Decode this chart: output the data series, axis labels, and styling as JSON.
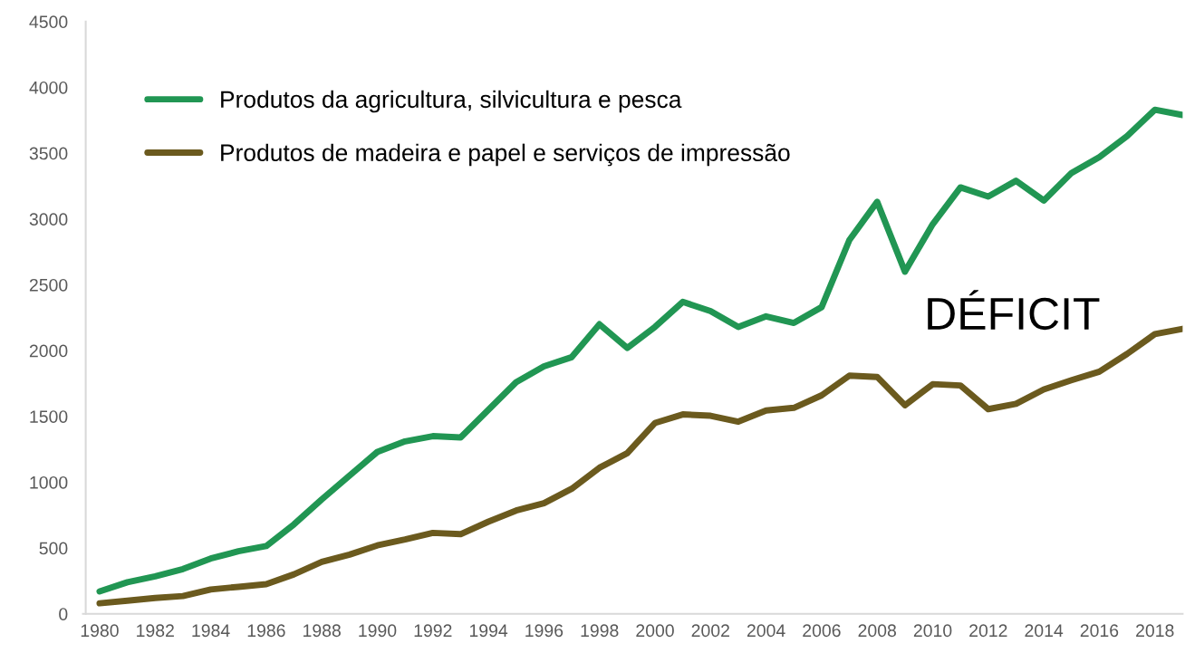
{
  "chart_data": {
    "type": "line",
    "categories": [
      "1980",
      null,
      "1982",
      null,
      "1984",
      null,
      "1986",
      null,
      "1988",
      null,
      "1990",
      null,
      "1992",
      null,
      "1994",
      null,
      "1996",
      null,
      "1998",
      null,
      "2000",
      null,
      "2002",
      null,
      "2004",
      null,
      "2006",
      null,
      "2008",
      null,
      "2010",
      null,
      "2012",
      null,
      "2014",
      null,
      "2016",
      null,
      "2018",
      null
    ],
    "series": [
      {
        "name": "Produtos da agricultura, silvicultura e pesca",
        "color": "#219653",
        "values": [
          170,
          240,
          285,
          340,
          420,
          475,
          515,
          680,
          870,
          1050,
          1230,
          1310,
          1350,
          1340,
          1550,
          1760,
          1880,
          1950,
          2200,
          2020,
          2180,
          2370,
          2300,
          2180,
          2260,
          2210,
          2330,
          2840,
          3130,
          2600,
          2960,
          3240,
          3170,
          3290,
          3140,
          3350,
          3470,
          3630,
          3830,
          3790
        ]
      },
      {
        "name": "Produtos de madeira e papel e serviços de impressão",
        "color": "#6b5a1e",
        "values": [
          80,
          100,
          120,
          135,
          185,
          205,
          225,
          300,
          395,
          450,
          520,
          565,
          615,
          605,
          700,
          785,
          840,
          950,
          1110,
          1220,
          1450,
          1515,
          1505,
          1460,
          1545,
          1565,
          1660,
          1810,
          1800,
          1585,
          1745,
          1735,
          1555,
          1595,
          1705,
          1775,
          1840,
          1975,
          2125,
          2165
        ]
      }
    ],
    "ylim": [
      0,
      4500
    ],
    "yticks": [
      0,
      500,
      1000,
      1500,
      2000,
      2500,
      3000,
      3500,
      4000,
      4500
    ],
    "grid": false,
    "legend": "top left",
    "marker": "none",
    "line_style": "solid",
    "annotations": [
      "DÉFICIT"
    ]
  }
}
